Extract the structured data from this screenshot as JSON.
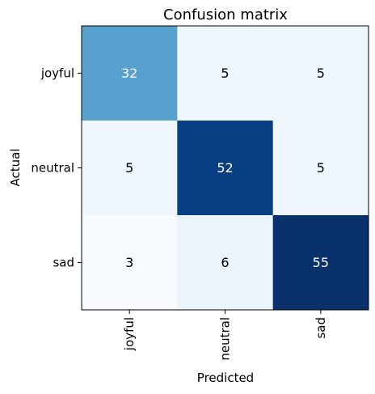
{
  "chart_data": {
    "type": "heatmap",
    "title": "Confusion matrix",
    "xlabel": "Predicted",
    "ylabel": "Actual",
    "x_categories": [
      "joyful",
      "neutral",
      "sad"
    ],
    "y_categories": [
      "joyful",
      "neutral",
      "sad"
    ],
    "values": [
      [
        32,
        5,
        5
      ],
      [
        5,
        52,
        5
      ],
      [
        3,
        6,
        55
      ]
    ],
    "colormap": "Blues",
    "grid": false
  }
}
